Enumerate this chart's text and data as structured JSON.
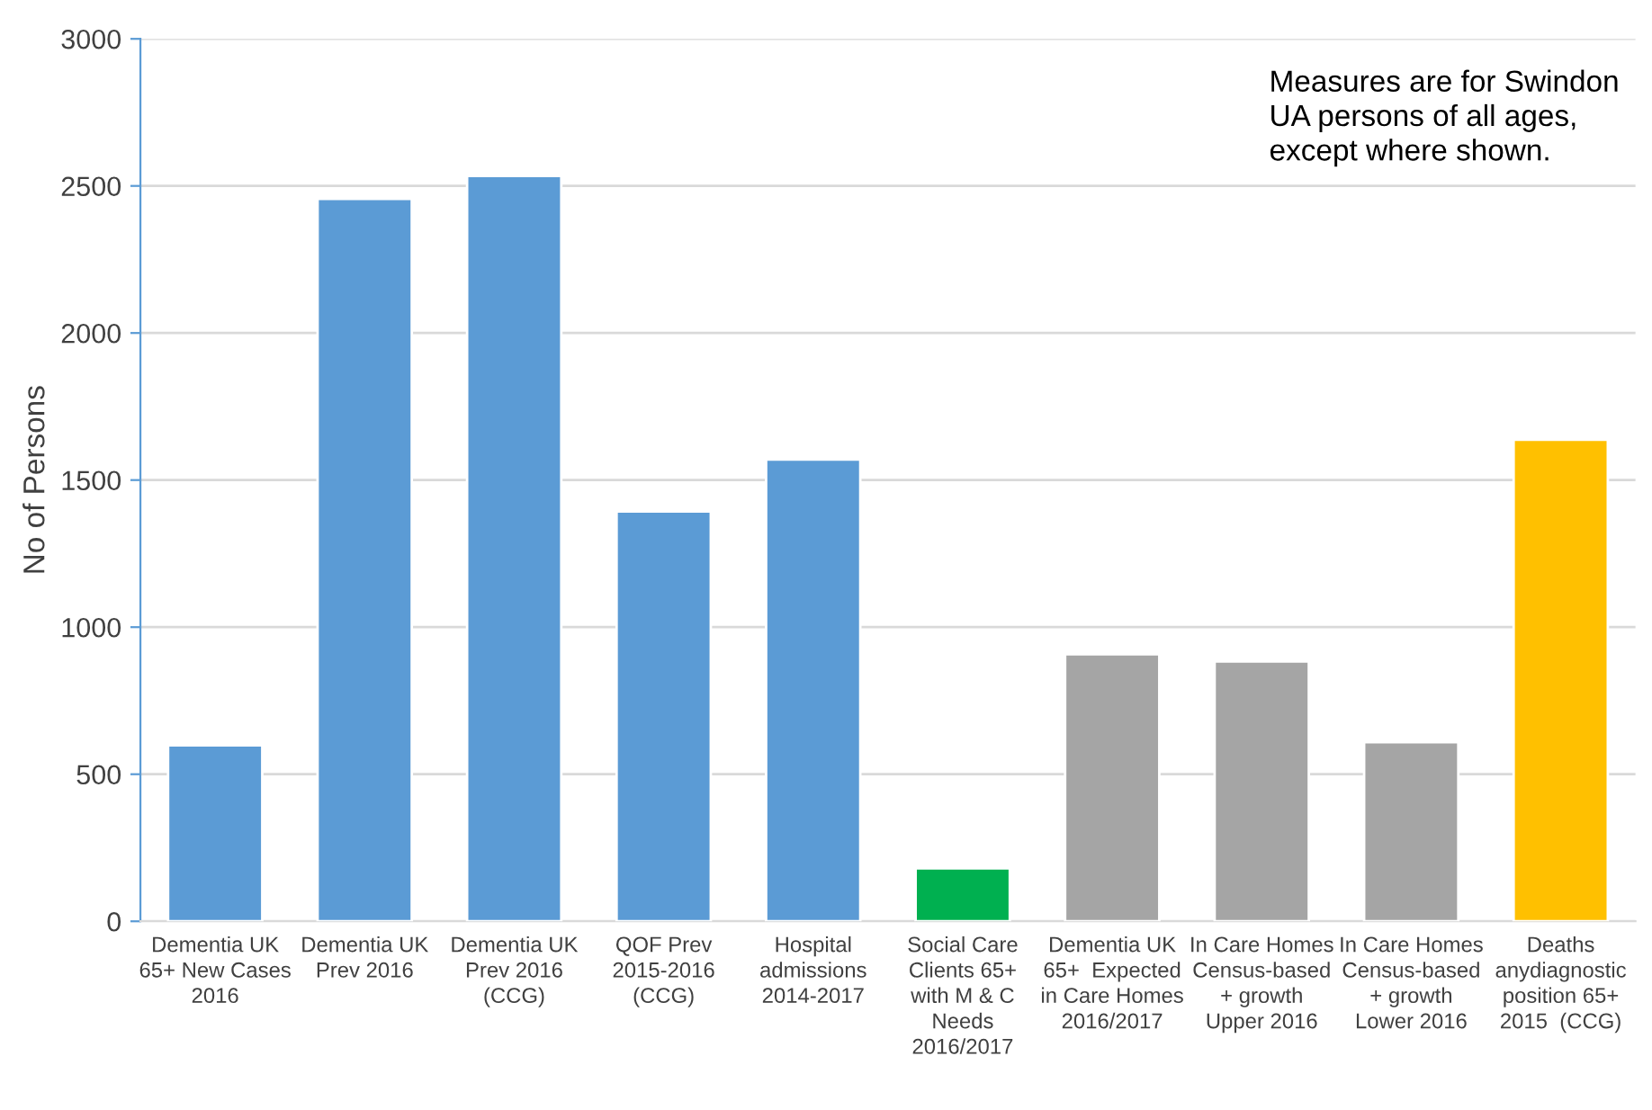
{
  "chart_data": {
    "type": "bar",
    "ylabel": "No of Persons",
    "categories": [
      "Dementia UK\n65+ New Cases\n2016",
      "Dementia UK\nPrev 2016",
      "Dementia UK\nPrev 2016\n(CCG)",
      "QOF Prev\n2015-2016\n(CCG)",
      "Hospital\nadmissions\n2014-2017",
      "Social Care\nClients 65+\nwith M & C\nNeeds\n2016/2017",
      "Dementia UK\n65+  Expected\nin Care Homes\n2016/2017",
      "In Care Homes\nCensus-based\n+ growth\nUpper 2016",
      "In Care Homes\nCensus-based\n+ growth\nLower 2016",
      "Deaths\nanydiagnostic\nposition 65+\n2015  (CCG)"
    ],
    "values": [
      598,
      2456,
      2534,
      1393,
      1570,
      180,
      908,
      883,
      609,
      1637
    ],
    "colors": [
      "#5b9bd5",
      "#5b9bd5",
      "#5b9bd5",
      "#5b9bd5",
      "#5b9bd5",
      "#00b050",
      "#a5a5a5",
      "#a5a5a5",
      "#a5a5a5",
      "#ffc000"
    ],
    "ylim": [
      0,
      3000
    ],
    "yticks": [
      0,
      500,
      1000,
      1500,
      2000,
      2500,
      3000
    ],
    "grid": "y",
    "annotations": [
      "Measures are for Swindon\nUA persons of all ages,\nexcept where shown."
    ]
  }
}
